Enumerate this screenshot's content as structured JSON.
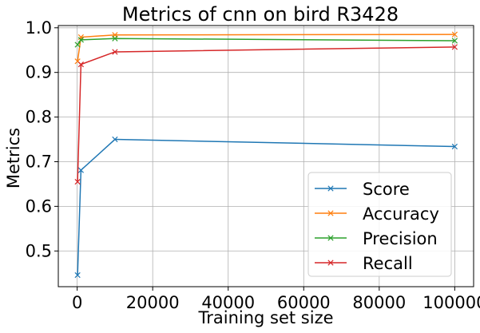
{
  "chart_data": {
    "type": "line",
    "title": "Metrics of cnn on bird R3428",
    "xlabel": "Training set size",
    "ylabel": "Metrics",
    "xlim": [
      -5000,
      105000
    ],
    "ylim": [
      0.42,
      1.005
    ],
    "xticks": [
      0,
      20000,
      40000,
      60000,
      80000,
      100000
    ],
    "yticks": [
      0.5,
      0.6,
      0.7,
      0.8,
      0.9,
      1.0
    ],
    "xtick_labels": [
      "0",
      "20000",
      "40000",
      "60000",
      "80000",
      "100000"
    ],
    "ytick_labels": [
      "0.5",
      "0.6",
      "0.7",
      "0.8",
      "0.9",
      "1.0"
    ],
    "grid": true,
    "legend_position": "lower-right",
    "marker": "x",
    "x": [
      100,
      1000,
      10000,
      100000
    ],
    "series": [
      {
        "name": "Score",
        "color": "#1f77b4",
        "values": [
          0.446,
          0.681,
          0.75,
          0.734
        ]
      },
      {
        "name": "Accuracy",
        "color": "#ff7f0e",
        "values": [
          0.925,
          0.979,
          0.984,
          0.985
        ]
      },
      {
        "name": "Precision",
        "color": "#2ca02c",
        "values": [
          0.962,
          0.973,
          0.976,
          0.971
        ]
      },
      {
        "name": "Recall",
        "color": "#d62728",
        "values": [
          0.655,
          0.918,
          0.946,
          0.957
        ]
      }
    ]
  }
}
